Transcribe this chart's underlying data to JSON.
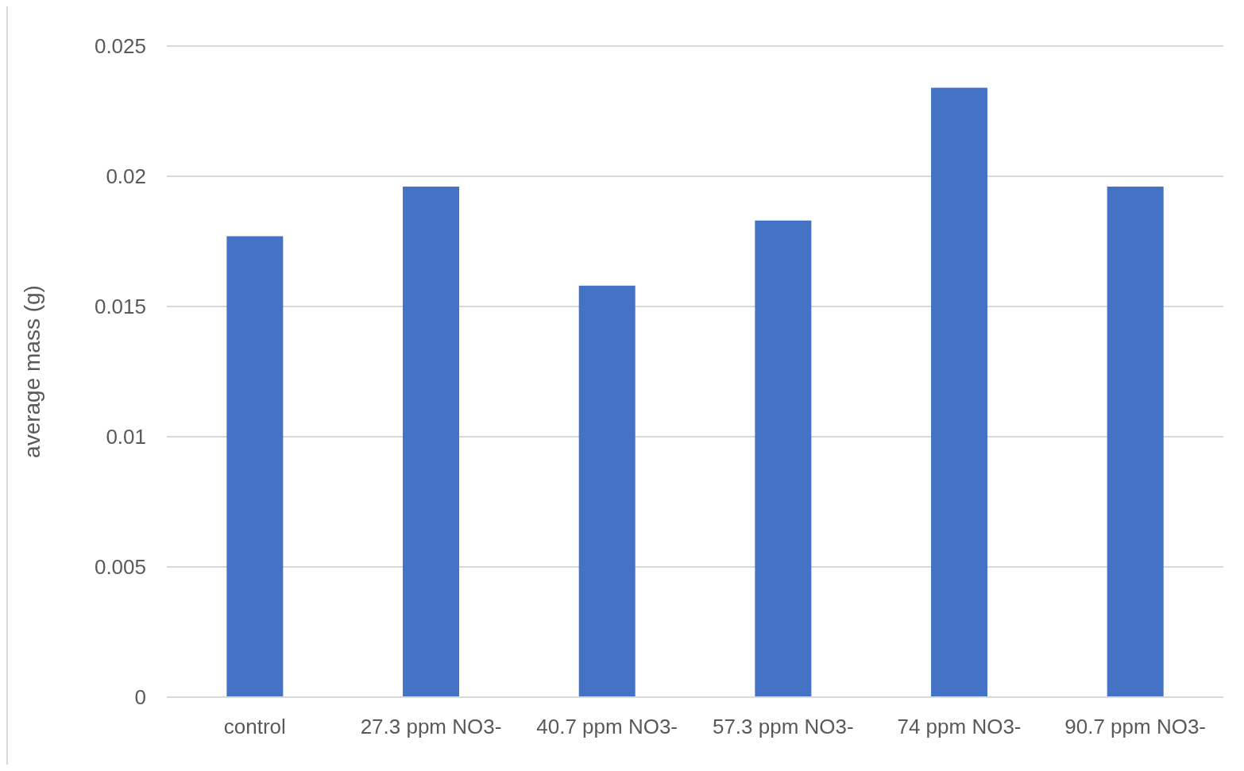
{
  "chart_data": {
    "type": "bar",
    "ylabel": "average mass (g)",
    "categories": [
      "control",
      "27.3 ppm NO3-",
      "40.7 ppm NO3-",
      "57.3 ppm NO3-",
      "74 ppm NO3-",
      "90.7 ppm NO3-"
    ],
    "values": [
      0.0177,
      0.0196,
      0.0158,
      0.0183,
      0.0234,
      0.0196
    ],
    "color": "#4472c4",
    "ylim": [
      0,
      0.025
    ],
    "yticks": [
      0,
      0.005,
      0.01,
      0.015,
      0.02,
      0.025
    ],
    "grid": "y"
  }
}
